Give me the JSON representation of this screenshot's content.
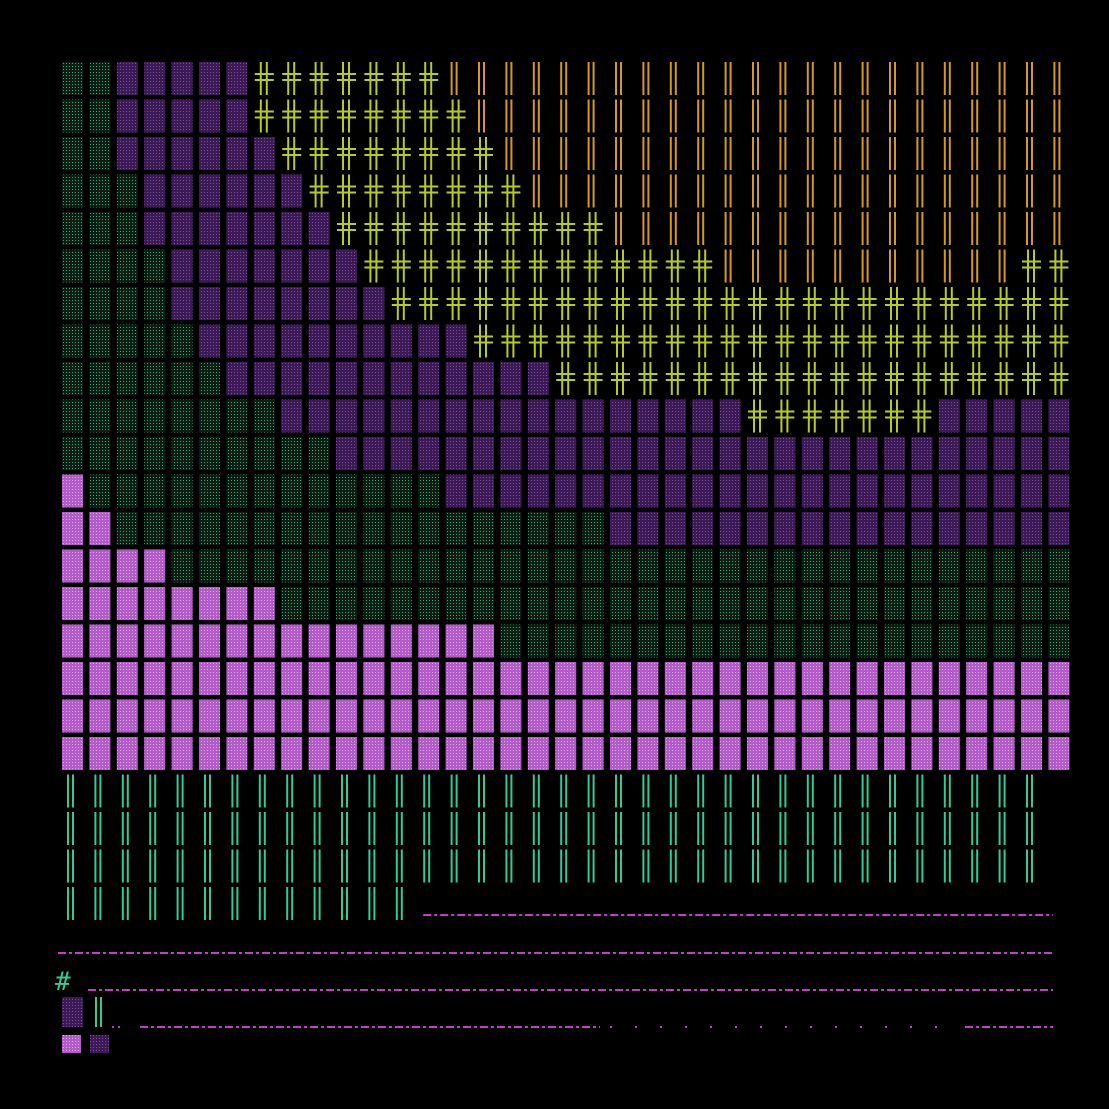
{
  "terminal": {
    "marker": "#"
  }
}
